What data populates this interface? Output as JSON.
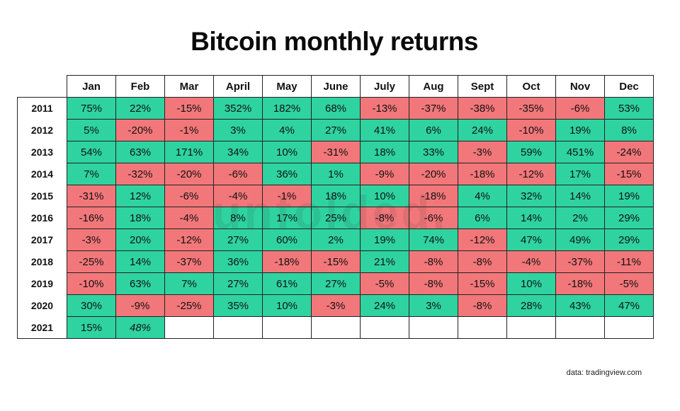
{
  "chart_data": {
    "type": "table",
    "title": "Bitcoin monthly returns",
    "columns": [
      "Jan",
      "Feb",
      "Mar",
      "April",
      "May",
      "June",
      "July",
      "Aug",
      "Sept",
      "Oct",
      "Nov",
      "Dec"
    ],
    "rows": [
      {
        "year": "2011",
        "values": [
          "75%",
          "22%",
          "-15%",
          "352%",
          "182%",
          "68%",
          "-13%",
          "-37%",
          "-38%",
          "-35%",
          "-6%",
          "53%"
        ]
      },
      {
        "year": "2012",
        "values": [
          "5%",
          "-20%",
          "-1%",
          "3%",
          "4%",
          "27%",
          "41%",
          "6%",
          "24%",
          "-10%",
          "19%",
          "8%"
        ]
      },
      {
        "year": "2013",
        "values": [
          "54%",
          "63%",
          "171%",
          "34%",
          "10%",
          "-31%",
          "18%",
          "33%",
          "-3%",
          "59%",
          "451%",
          "-24%"
        ]
      },
      {
        "year": "2014",
        "values": [
          "7%",
          "-32%",
          "-20%",
          "-6%",
          "36%",
          "1%",
          "-9%",
          "-20%",
          "-18%",
          "-12%",
          "17%",
          "-15%"
        ]
      },
      {
        "year": "2015",
        "values": [
          "-31%",
          "12%",
          "-6%",
          "-4%",
          "-1%",
          "18%",
          "10%",
          "-18%",
          "4%",
          "32%",
          "14%",
          "19%"
        ]
      },
      {
        "year": "2016",
        "values": [
          "-16%",
          "18%",
          "-4%",
          "8%",
          "17%",
          "25%",
          "-8%",
          "-6%",
          "6%",
          "14%",
          "2%",
          "29%"
        ]
      },
      {
        "year": "2017",
        "values": [
          "-3%",
          "20%",
          "-12%",
          "27%",
          "60%",
          "2%",
          "19%",
          "74%",
          "-12%",
          "47%",
          "49%",
          "29%"
        ]
      },
      {
        "year": "2018",
        "values": [
          "-25%",
          "14%",
          "-37%",
          "36%",
          "-18%",
          "-15%",
          "21%",
          "-8%",
          "-8%",
          "-4%",
          "-37%",
          "-11%"
        ]
      },
      {
        "year": "2019",
        "values": [
          "-10%",
          "63%",
          "7%",
          "27%",
          "61%",
          "27%",
          "-5%",
          "-8%",
          "-15%",
          "10%",
          "-18%",
          "-5%"
        ]
      },
      {
        "year": "2020",
        "values": [
          "30%",
          "-9%",
          "-25%",
          "35%",
          "10%",
          "-3%",
          "24%",
          "3%",
          "-8%",
          "28%",
          "43%",
          "47%"
        ]
      },
      {
        "year": "2021",
        "values": [
          "15%",
          "48%",
          "",
          "",
          "",
          "",
          "",
          "",
          "",
          "",
          "",
          ""
        ]
      }
    ],
    "italic_cells": [
      {
        "year": "2021",
        "month": "Feb"
      }
    ],
    "colors": {
      "positive": "#2fd3a0",
      "negative": "#f2777a",
      "empty": "#ffffff"
    },
    "source": "data: tradingview.com",
    "watermark": "unfolded."
  }
}
